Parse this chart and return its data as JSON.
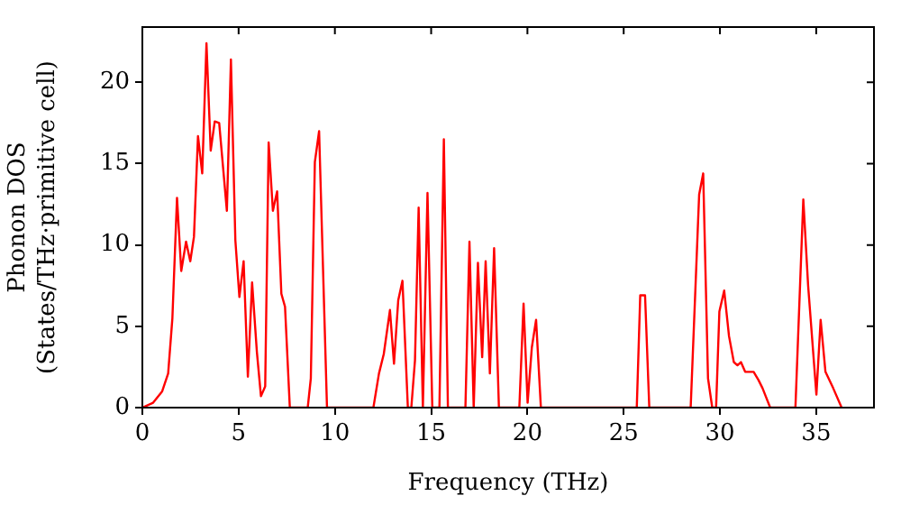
{
  "chart_data": {
    "type": "line",
    "xlabel": "Frequency (THz)",
    "ylabel": "Phonon DOS\n(States/THz·primitive cell)",
    "xlim": [
      0,
      38
    ],
    "ylim": [
      0,
      23.4
    ],
    "xticks": [
      0,
      5,
      10,
      15,
      20,
      25,
      30,
      35
    ],
    "yticks": [
      0,
      5,
      10,
      15,
      20
    ],
    "grid": false,
    "legend": false,
    "marker": "none",
    "line_style": "solid",
    "series": [
      {
        "color": "#ff0000",
        "x": [
          0,
          0.56,
          1.03,
          1.34,
          1.56,
          1.8,
          2.02,
          2.27,
          2.49,
          2.68,
          2.89,
          3.11,
          3.33,
          3.55,
          3.76,
          3.99,
          4.39,
          4.6,
          4.83,
          5.04,
          5.26,
          5.48,
          5.7,
          5.95,
          6.16,
          6.38,
          6.56,
          6.78,
          7.0,
          7.22,
          7.41,
          7.66,
          8.59,
          8.75,
          8.96,
          9.18,
          9.59,
          12.0,
          12.29,
          12.54,
          12.86,
          13.07,
          13.29,
          13.51,
          13.79,
          13.97,
          14.16,
          14.35,
          14.57,
          14.81,
          15.06,
          15.43,
          15.66,
          15.87,
          16.78,
          16.99,
          17.21,
          17.43,
          17.65,
          17.83,
          18.05,
          18.27,
          18.52,
          19.58,
          19.8,
          20.01,
          20.23,
          20.45,
          20.7,
          25.68,
          25.86,
          26.11,
          26.33,
          28.48,
          28.92,
          29.13,
          29.38,
          29.6,
          29.8,
          29.97,
          30.22,
          30.47,
          30.72,
          30.91,
          31.09,
          31.31,
          31.75,
          32.0,
          32.21,
          32.61,
          33.92,
          34.33,
          34.58,
          35.01,
          35.23,
          35.48,
          35.88,
          36.32
        ],
        "values": [
          0,
          0.3,
          1.0,
          2.1,
          5.5,
          12.9,
          8.4,
          10.2,
          9.0,
          10.5,
          16.7,
          14.4,
          22.4,
          15.8,
          17.6,
          17.5,
          12.1,
          21.4,
          10.3,
          6.8,
          9.0,
          1.9,
          7.7,
          3.4,
          0.7,
          1.3,
          16.3,
          12.1,
          13.3,
          7.0,
          6.2,
          0,
          0,
          1.8,
          15.1,
          17.0,
          0,
          0,
          2.1,
          3.3,
          6.0,
          2.7,
          6.6,
          7.8,
          0,
          0,
          2.9,
          12.3,
          0,
          13.2,
          0,
          0,
          16.5,
          0,
          0,
          10.2,
          0,
          8.9,
          3.1,
          9.0,
          2.1,
          9.8,
          0,
          0,
          6.4,
          0.3,
          3.7,
          5.4,
          0,
          0,
          6.9,
          6.9,
          0,
          0,
          13.1,
          14.4,
          1.8,
          0,
          0,
          5.9,
          7.2,
          4.4,
          2.8,
          2.6,
          2.8,
          2.2,
          2.2,
          1.7,
          1.2,
          0,
          0,
          12.8,
          7.5,
          0.8,
          5.4,
          2.2,
          1.2,
          0
        ]
      }
    ]
  }
}
